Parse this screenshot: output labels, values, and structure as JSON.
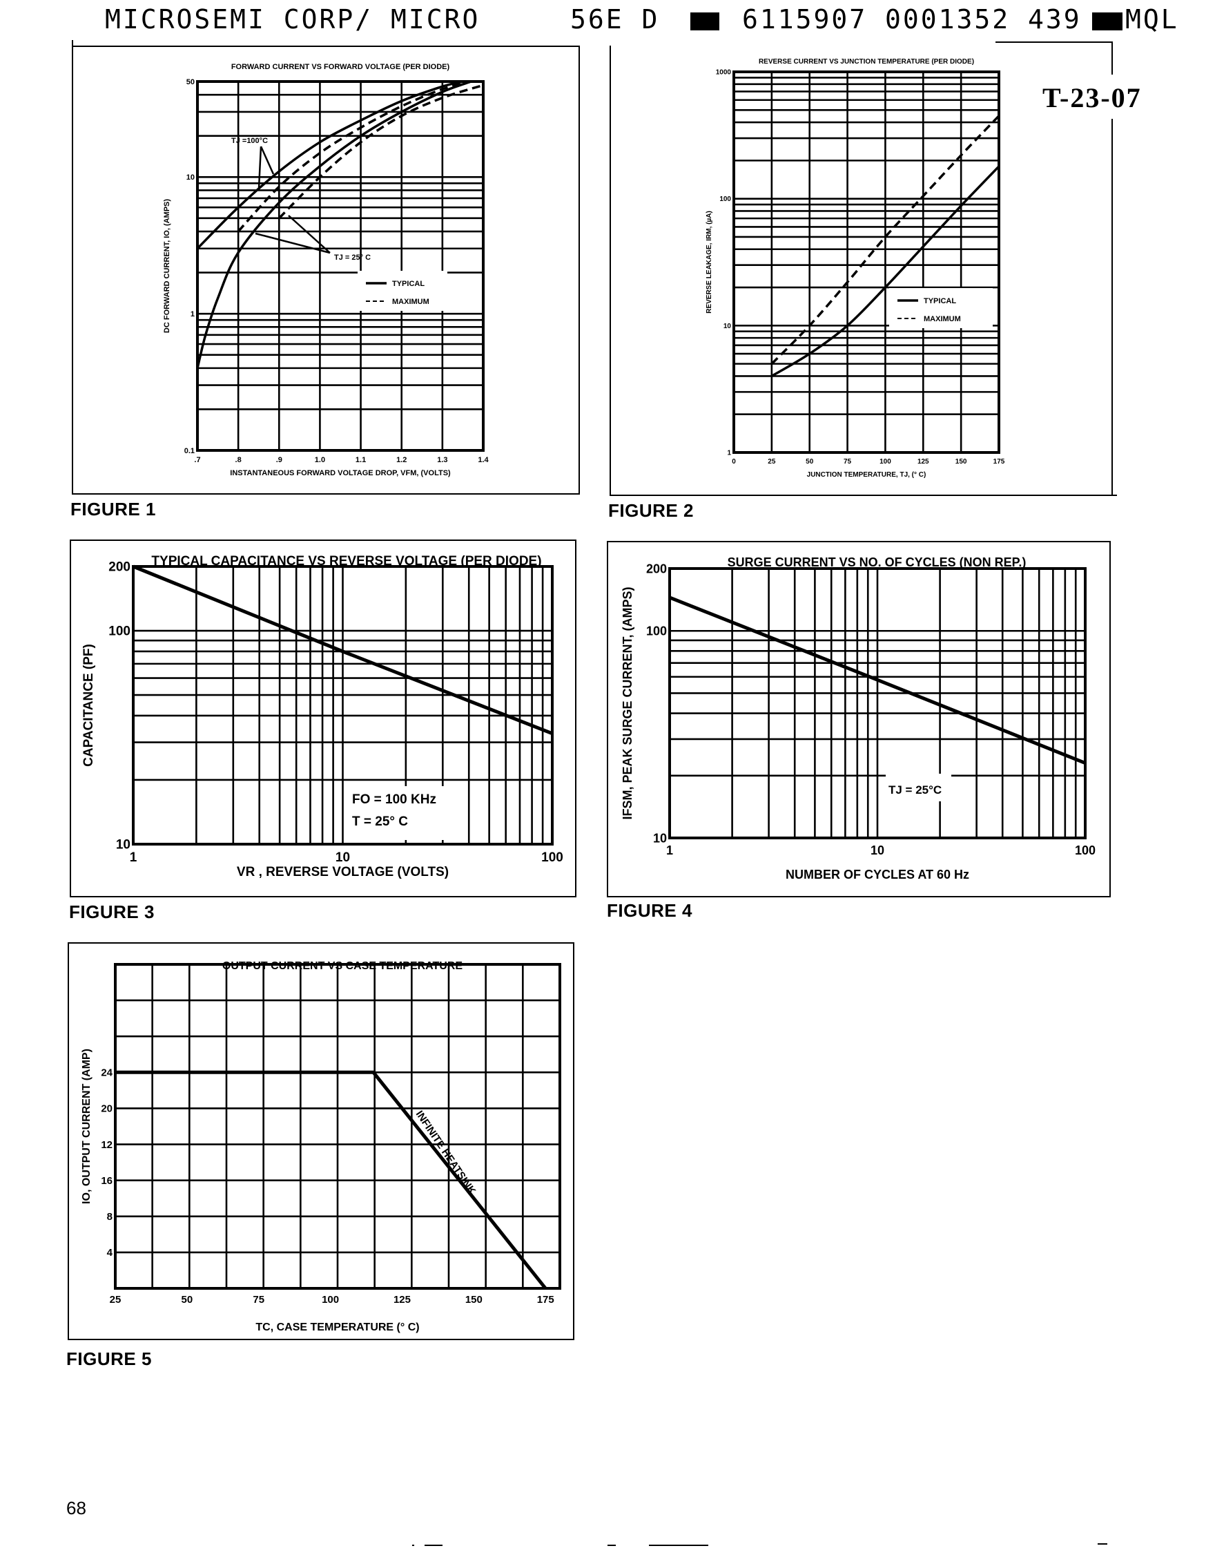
{
  "header": {
    "left": "MICROSEMI CORP/ MICRO",
    "code": "56E D",
    "serial": "6115907 0001352 439",
    "suffix": "MQL",
    "stamp": "T-23-07"
  },
  "page_number": "68",
  "figures": [
    {
      "label": "FIGURE 1"
    },
    {
      "label": "FIGURE 2"
    },
    {
      "label": "FIGURE 3"
    },
    {
      "label": "FIGURE 4"
    },
    {
      "label": "FIGURE 5"
    }
  ],
  "chart_data": [
    {
      "id": "fig1",
      "type": "line",
      "title": "FORWARD CURRENT VS FORWARD VOLTAGE (PER DIODE)",
      "xlabel": "INSTANTANEOUS FORWARD VOLTAGE DROP, VFM, (VOLTS)",
      "ylabel": "DC FORWARD CURRENT, IO, (AMPS)",
      "xscale": "linear",
      "yscale": "log",
      "xlim": [
        0.7,
        1.4
      ],
      "ylim": [
        0.1,
        50
      ],
      "xticks": [
        ".7",
        ".8",
        ".9",
        "1.0",
        "1.1",
        "1.2",
        "1.3",
        "1.4"
      ],
      "yticks": [
        "0.1",
        "1",
        "10",
        "50"
      ],
      "legend": [
        "TYPICAL",
        "MAXIMUM"
      ],
      "annotations": [
        "TJ =100°C",
        "TJ = 25° C"
      ],
      "series": [
        {
          "name": "TJ=100°C Typical",
          "style": "solid",
          "x": [
            0.7,
            0.8,
            0.9,
            1.0,
            1.1,
            1.2,
            1.3,
            1.35
          ],
          "y": [
            3,
            6,
            11,
            18,
            26,
            36,
            46,
            50
          ]
        },
        {
          "name": "TJ=100°C Maximum",
          "style": "dashed",
          "x": [
            0.8,
            0.9,
            1.0,
            1.1,
            1.2,
            1.3,
            1.37
          ],
          "y": [
            4,
            8.5,
            15,
            23,
            33,
            44,
            50
          ]
        },
        {
          "name": "TJ=25°C Typical",
          "style": "solid",
          "x": [
            0.7,
            0.72,
            0.75,
            0.8,
            0.9,
            1.0,
            1.1,
            1.2,
            1.3,
            1.37
          ],
          "y": [
            0.4,
            0.7,
            1.3,
            2.8,
            6.5,
            12,
            20,
            30,
            42,
            50
          ]
        },
        {
          "name": "TJ=25°C Maximum",
          "style": "dashed",
          "x": [
            0.9,
            1.0,
            1.1,
            1.2,
            1.3,
            1.4
          ],
          "y": [
            5,
            10,
            18,
            28,
            38,
            47
          ]
        }
      ]
    },
    {
      "id": "fig2",
      "type": "line",
      "title": "REVERSE CURRENT VS JUNCTION TEMPERATURE (PER DIODE)",
      "xlabel": "JUNCTION TEMPERATURE, TJ, (° C)",
      "ylabel": "REVERSE LEAKAGE, IRM, (µA)",
      "xscale": "linear",
      "yscale": "log",
      "xlim": [
        0,
        175
      ],
      "ylim": [
        1,
        1000
      ],
      "xticks": [
        "0",
        "25",
        "50",
        "75",
        "100",
        "125",
        "150",
        "175"
      ],
      "yticks": [
        "1",
        "10",
        "100",
        "1000"
      ],
      "legend": [
        "TYPICAL",
        "MAXIMUM"
      ],
      "series": [
        {
          "name": "Typical",
          "style": "solid",
          "x": [
            25,
            50,
            75,
            100,
            125,
            150,
            175
          ],
          "y": [
            4,
            6,
            10,
            20,
            42,
            88,
            180
          ]
        },
        {
          "name": "Maximum",
          "style": "dashed",
          "x": [
            25,
            50,
            75,
            100,
            125,
            150,
            175
          ],
          "y": [
            5,
            10,
            22,
            50,
            105,
            220,
            450
          ]
        }
      ]
    },
    {
      "id": "fig3",
      "type": "line",
      "title": "TYPICAL CAPACITANCE VS REVERSE VOLTAGE (PER DIODE)",
      "xlabel": "VR , REVERSE VOLTAGE (VOLTS)",
      "ylabel": "CAPACITANCE (PF)",
      "xscale": "log",
      "yscale": "log",
      "xlim": [
        1,
        100
      ],
      "ylim": [
        10,
        200
      ],
      "xticks": [
        "1",
        "10",
        "100"
      ],
      "yticks": [
        "10",
        "100",
        "200"
      ],
      "annotations": [
        "FO = 100 KHz",
        "T = 25° C"
      ],
      "series": [
        {
          "name": "Typical",
          "style": "solid",
          "x": [
            1,
            10,
            100
          ],
          "y": [
            200,
            80,
            33
          ]
        }
      ]
    },
    {
      "id": "fig4",
      "type": "line",
      "title": "SURGE CURRENT VS NO. OF CYCLES (NON REP.)",
      "xlabel": "NUMBER OF CYCLES AT 60 Hz",
      "ylabel": "IFSM, PEAK SURGE CURRENT, (AMPS)",
      "xscale": "log",
      "yscale": "log",
      "xlim": [
        1,
        100
      ],
      "ylim": [
        10,
        200
      ],
      "xticks": [
        "1",
        "10",
        "100"
      ],
      "yticks": [
        "10",
        "100",
        "200"
      ],
      "annotations": [
        "TJ = 25°C"
      ],
      "series": [
        {
          "name": "Surge",
          "style": "solid",
          "x": [
            1,
            10,
            100
          ],
          "y": [
            145,
            58,
            23
          ]
        }
      ]
    },
    {
      "id": "fig5",
      "type": "line",
      "title": "OUTPUT CURRENT VS CASE TEMPERATURE",
      "xlabel": "TC, CASE TEMPERATURE (° C)",
      "ylabel": "IO, OUTPUT CURRENT (AMP)",
      "xscale": "linear",
      "yscale": "linear",
      "xlim": [
        25,
        180
      ],
      "ylim": [
        0,
        36
      ],
      "xticks": [
        "25",
        "50",
        "75",
        "100",
        "125",
        "150",
        "175"
      ],
      "yticks": [
        "4",
        "8",
        "16",
        "12",
        "20",
        "24"
      ],
      "annotations": [
        "INFINITE HEATSINK"
      ],
      "series": [
        {
          "name": "Infinite Heatsink",
          "style": "solid",
          "x": [
            25,
            115,
            175
          ],
          "y": [
            24,
            24,
            0
          ]
        }
      ]
    }
  ]
}
